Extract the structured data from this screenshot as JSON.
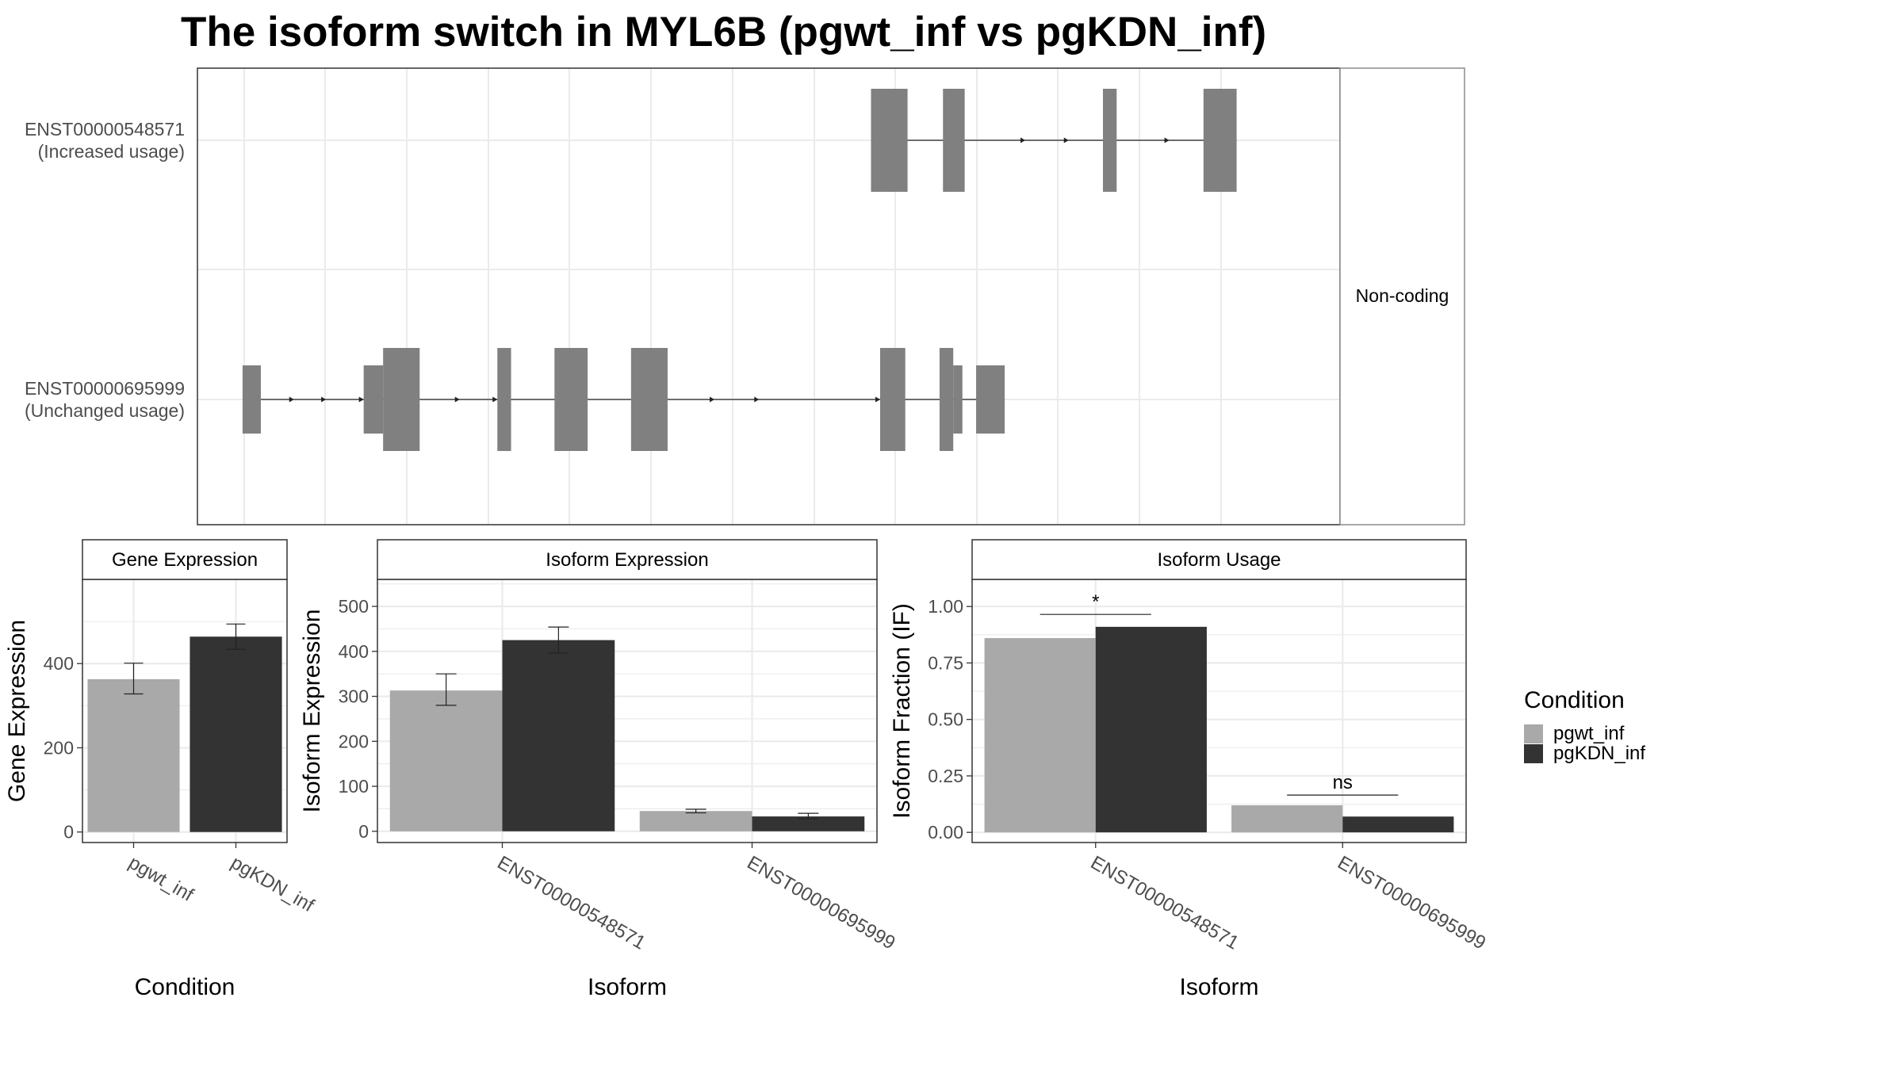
{
  "title": "The isoform switch in MYL6B (pgwt_inf vs pgKDN_inf)",
  "colors": {
    "pgwt_inf": "#a9a9a9",
    "pgKDN_inf": "#333333",
    "exon": "#808080",
    "grid": "#ebebeb",
    "panel_border": "#333333",
    "strip_border": "#8c8c8c",
    "text": "#000000",
    "tick_text": "#4d4d4d"
  },
  "structure": {
    "strip_label": "Non-coding",
    "isoforms": [
      {
        "id": "ENST00000548571",
        "label": "ENST00000548571",
        "usage_label": "(Increased usage)",
        "exons": [
          {
            "start": 0.5895,
            "end": 0.6215,
            "size": "large"
          },
          {
            "start": 0.6525,
            "end": 0.6715,
            "size": "large"
          },
          {
            "start": 0.7925,
            "end": 0.8045,
            "size": "large"
          },
          {
            "start": 0.8805,
            "end": 0.9095,
            "size": "large"
          }
        ],
        "arrows": [
          0.7245,
          0.7625,
          0.8005,
          0.8505,
          0.8885
        ]
      },
      {
        "id": "ENST00000695999",
        "label": "ENST00000695999",
        "usage_label": "(Unchanged usage)",
        "exons": [
          {
            "start": 0.0395,
            "end": 0.0555,
            "size": "small"
          },
          {
            "start": 0.1455,
            "end": 0.1625,
            "size": "small"
          },
          {
            "start": 0.1625,
            "end": 0.1945,
            "size": "large"
          },
          {
            "start": 0.2625,
            "end": 0.2745,
            "size": "large"
          },
          {
            "start": 0.3125,
            "end": 0.3415,
            "size": "large"
          },
          {
            "start": 0.3795,
            "end": 0.4115,
            "size": "large"
          },
          {
            "start": 0.5975,
            "end": 0.6195,
            "size": "large"
          },
          {
            "start": 0.6495,
            "end": 0.6615,
            "size": "large"
          },
          {
            "start": 0.6615,
            "end": 0.6695,
            "size": "small"
          },
          {
            "start": 0.6815,
            "end": 0.7065,
            "size": "small"
          }
        ],
        "arrows": [
          0.0845,
          0.1125,
          0.1455,
          0.2295,
          0.2625,
          0.4525,
          0.4915,
          0.5975
        ]
      }
    ]
  },
  "chart_data": [
    {
      "type": "bar",
      "strip": "Gene Expression",
      "xlabel": "Condition",
      "ylabel": "Gene Expression",
      "categories": [
        "pgwt_inf",
        "pgKDN_inf"
      ],
      "values": [
        363,
        464
      ],
      "error_low": [
        328,
        434
      ],
      "error_high": [
        401,
        494
      ],
      "ylim": [
        -25,
        600
      ],
      "yticks": [
        0,
        200,
        400
      ],
      "ytick_labels": [
        "0",
        "200",
        "400"
      ]
    },
    {
      "type": "bar",
      "strip": "Isoform Expression",
      "xlabel": "Isoform",
      "ylabel": "Isoform Expression",
      "categories": [
        "ENST00000548571",
        "ENST00000695999"
      ],
      "series": [
        {
          "name": "pgwt_inf",
          "values": [
            313,
            45
          ],
          "error_low": [
            280,
            41
          ],
          "error_high": [
            350,
            49
          ]
        },
        {
          "name": "pgKDN_inf",
          "values": [
            425,
            33
          ],
          "error_low": [
            396,
            28
          ],
          "error_high": [
            454,
            40
          ]
        }
      ],
      "ylim": [
        -25,
        560
      ],
      "yticks": [
        0,
        100,
        200,
        300,
        400,
        500
      ],
      "ytick_labels": [
        "0",
        "100",
        "200",
        "300",
        "400",
        "500"
      ]
    },
    {
      "type": "bar",
      "strip": "Isoform Usage",
      "xlabel": "Isoform",
      "ylabel": "Isoform Fraction (IF)",
      "categories": [
        "ENST00000548571",
        "ENST00000695999"
      ],
      "series": [
        {
          "name": "pgwt_inf",
          "values": [
            0.86,
            0.12
          ]
        },
        {
          "name": "pgKDN_inf",
          "values": [
            0.91,
            0.07
          ]
        }
      ],
      "significance": [
        {
          "category": "ENST00000548571",
          "label": "*",
          "y": 0.965
        },
        {
          "category": "ENST00000695999",
          "label": "ns",
          "y": 0.165
        }
      ],
      "ylim": [
        -0.045,
        1.12
      ],
      "yticks": [
        0,
        0.25,
        0.5,
        0.75,
        1.0
      ],
      "ytick_labels": [
        "0.00",
        "0.25",
        "0.50",
        "0.75",
        "1.00"
      ]
    }
  ],
  "legend": {
    "title": "Condition",
    "items": [
      {
        "label": "pgwt_inf",
        "color_key": "pgwt_inf"
      },
      {
        "label": "pgKDN_inf",
        "color_key": "pgKDN_inf"
      }
    ]
  }
}
